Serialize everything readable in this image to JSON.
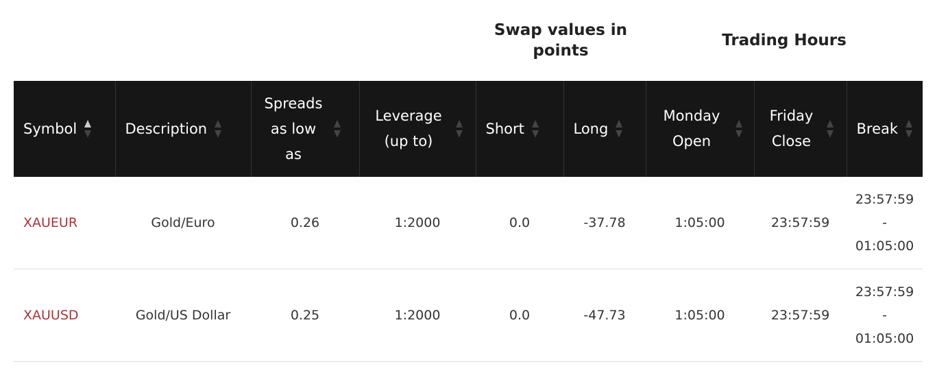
{
  "group_headers": [
    "Swap values in points",
    "Trading Hours"
  ],
  "table": {
    "columns": [
      "Symbol",
      "Description",
      "Spreads as low as",
      "Leverage (up to)",
      "Short",
      "Long",
      "Monday Open",
      "Friday Close",
      "Break"
    ],
    "rows": [
      [
        "XAUEUR",
        "Gold/Euro",
        "0.26",
        "1:2000",
        "0.0",
        "-37.78",
        "1:05:00",
        "23:57:59",
        "23:57:59\n-\n01:05:00"
      ],
      [
        "XAUUSD",
        "Gold/US Dollar",
        "0.25",
        "1:2000",
        "0.0",
        "-47.73",
        "1:05:00",
        "23:57:59",
        "23:57:59\n-\n01:05:00"
      ]
    ]
  }
}
